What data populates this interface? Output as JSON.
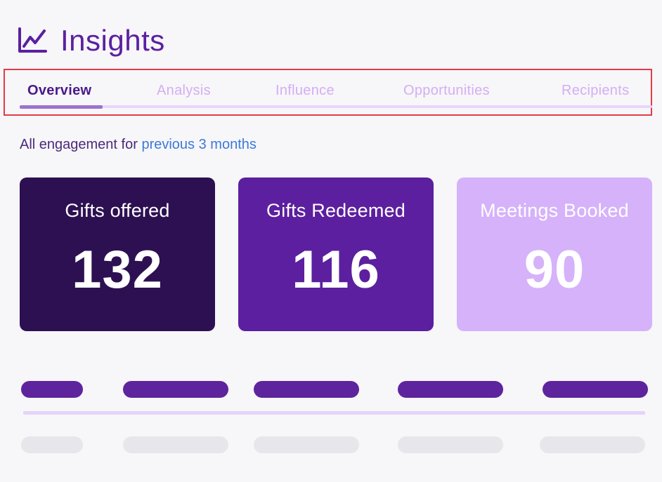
{
  "header": {
    "title": "Insights",
    "icon": "line-chart-icon"
  },
  "tabs": [
    {
      "label": "Overview",
      "active": true
    },
    {
      "label": "Analysis",
      "active": false
    },
    {
      "label": "Influence",
      "active": false
    },
    {
      "label": "Opportunities",
      "active": false
    },
    {
      "label": "Recipients",
      "active": false
    }
  ],
  "engagement": {
    "prefix": "All engagement for",
    "period_link": "previous 3 months"
  },
  "stats": [
    {
      "label": "Gifts offered",
      "value": "132",
      "color": "#2d1052"
    },
    {
      "label": "Gifts Redeemed",
      "value": "116",
      "color": "#5c1f9f"
    },
    {
      "label": "Meetings Booked",
      "value": "90",
      "color": "#d5b2fa"
    }
  ],
  "colors": {
    "brand": "#5b20a0",
    "tab_inactive": "#d4aef3",
    "link": "#3b7ad9",
    "highlight_outline": "#e23b47",
    "placeholder_header": "#5e249d",
    "placeholder_row": "#e7e6ea"
  }
}
